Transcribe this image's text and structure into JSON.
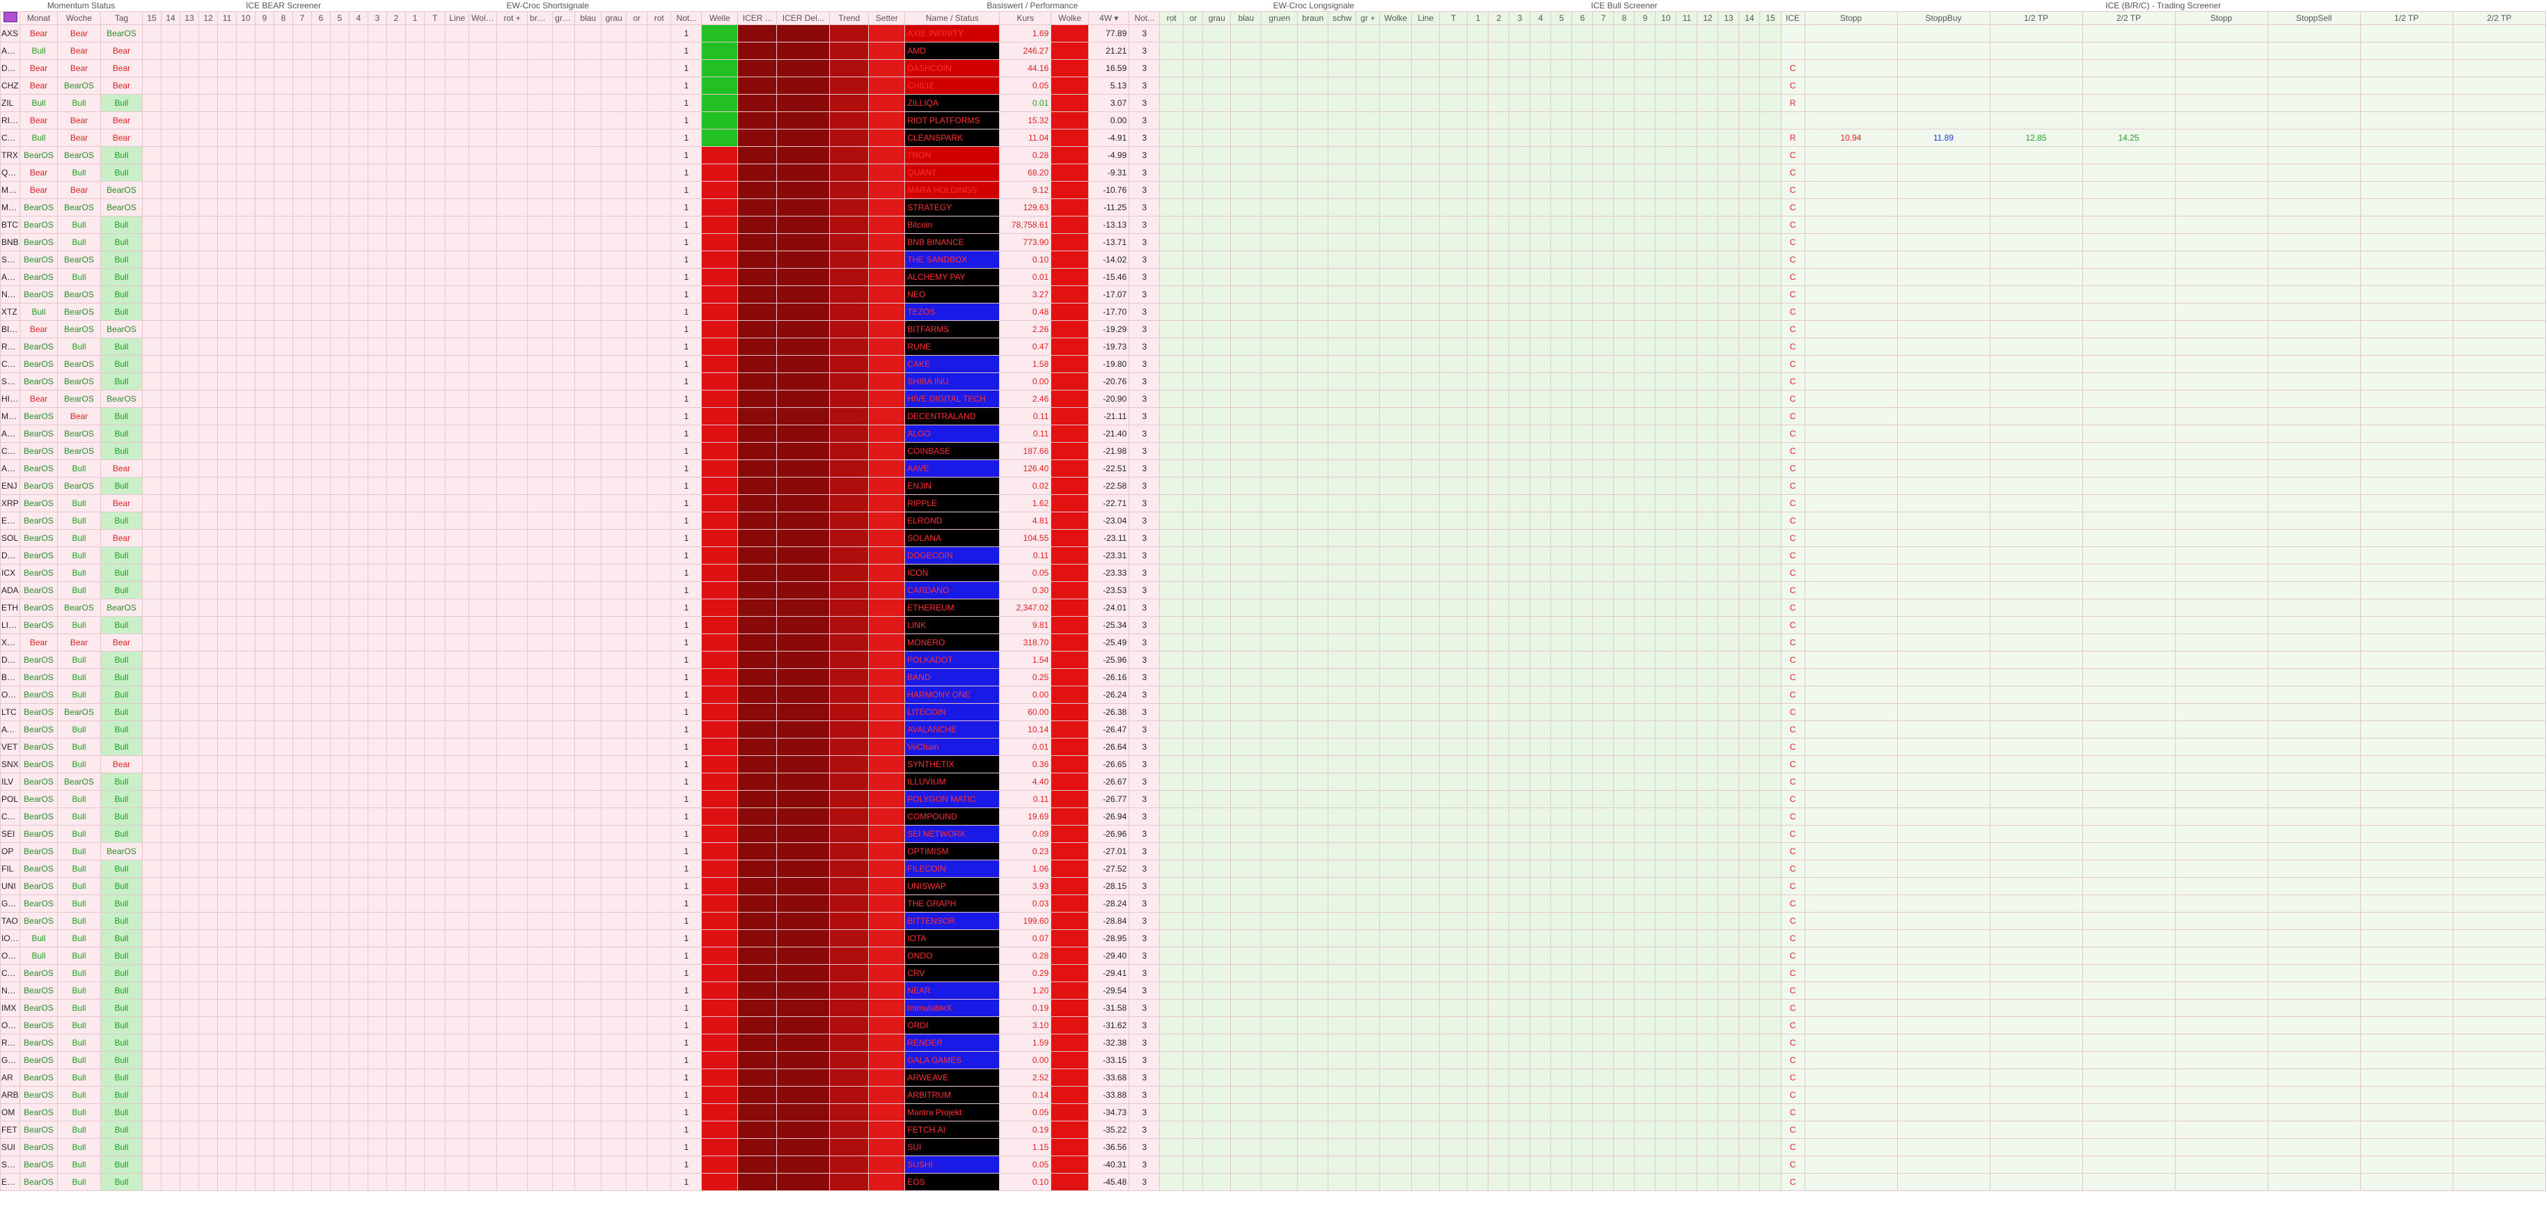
{
  "groups": [
    "Momentum Status",
    "ICE BEAR Screener",
    "EW-Croc Shortsignale",
    "Basiswert / Performance",
    "EW-Croc Longsignale",
    "ICE Bull Screener",
    "ICE (B/R/C) - Trading Screener"
  ],
  "columns": [
    "Monat",
    "Woche",
    "Tag",
    "15",
    "14",
    "13",
    "12",
    "11",
    "10",
    "9",
    "8",
    "7",
    "6",
    "5",
    "4",
    "3",
    "2",
    "1",
    "T",
    "Line",
    "Wolke",
    "rot +",
    "braun",
    "grü...",
    "blau",
    "grau",
    "or",
    "rot",
    "Not...",
    "Welle",
    "ICER ...",
    "ICER Del...",
    "Trend",
    "Setter",
    "Name / Status",
    "Kurs",
    "Wolke",
    "4W ▾",
    "Not...",
    "rot",
    "or",
    "grau",
    "blau",
    "gruen",
    "braun",
    "schw",
    "gr +",
    "Wolke",
    "Line",
    "T",
    "1",
    "2",
    "3",
    "4",
    "5",
    "6",
    "7",
    "8",
    "9",
    "10",
    "11",
    "12",
    "13",
    "14",
    "15",
    "ICE",
    "Stopp",
    "StoppBuy",
    "1/2 TP",
    "2/2 TP",
    "Stopp",
    "StoppSell",
    "1/2 TP",
    "2/2 TP"
  ],
  "rows": [
    {
      "t": "AXS",
      "m": "Bear",
      "w": "Bear",
      "d": "BearOS",
      "s": "1",
      "wl": "green",
      "n": "AXIE INFINITY",
      "k": "1.69",
      "p": "77.89",
      "x": "3",
      "bg": "#d00000"
    },
    {
      "t": "AMD",
      "m": "Bull",
      "w": "Bear",
      "d": "Bear",
      "s": "1",
      "wl": "green",
      "n": "AMD",
      "k": "246.27",
      "p": "21.21",
      "x": "3",
      "bg": "#000000"
    },
    {
      "t": "DASH",
      "m": "Bear",
      "w": "Bear",
      "d": "Bear",
      "s": "1",
      "wl": "green",
      "n": "DASHCOIN",
      "k": "44.16",
      "p": "16.59",
      "x": "3",
      "bg": "#d00000",
      "ice": "C"
    },
    {
      "t": "CHZ",
      "m": "Bear",
      "w": "BearOS",
      "d": "Bear",
      "s": "1",
      "wl": "green",
      "n": "CHILIZ",
      "k": "0.05",
      "p": "5.13",
      "x": "3",
      "bg": "#d00000",
      "ice": "C"
    },
    {
      "t": "ZIL",
      "m": "Bull",
      "w": "Bull",
      "d": "Bull",
      "s": "1",
      "wl": "green",
      "n": "ZILLIQA",
      "k": "0.01",
      "kc": "#22aa22",
      "p": "3.07",
      "x": "3",
      "bg": "#000000",
      "ice": "R"
    },
    {
      "t": "RIOT",
      "m": "Bear",
      "w": "Bear",
      "d": "Bear",
      "s": "1",
      "wl": "green",
      "n": "RIOT PLATFORMS",
      "k": "15.32",
      "p": "0.00",
      "x": "3",
      "bg": "#000000"
    },
    {
      "t": "CLSK",
      "m": "Bull",
      "w": "Bear",
      "d": "Bear",
      "s": "1",
      "wl": "green",
      "n": "CLEANSPARK",
      "k": "11.04",
      "p": "-4.91",
      "x": "3",
      "bg": "#000000",
      "ice": "R",
      "tr": [
        "10.94",
        "11.89",
        "12.85",
        "14.25"
      ]
    },
    {
      "t": "TRX",
      "m": "BearOS",
      "w": "BearOS",
      "d": "Bull",
      "s": "1",
      "wl": "red",
      "n": "TRON",
      "k": "0.28",
      "p": "-4.99",
      "x": "3",
      "bg": "#d00000",
      "ice": "C"
    },
    {
      "t": "QNT",
      "m": "Bear",
      "w": "Bull",
      "d": "Bull",
      "s": "1",
      "wl": "red",
      "n": "QUANT",
      "k": "68.20",
      "p": "-9.31",
      "x": "3",
      "bg": "#d00000",
      "ice": "C"
    },
    {
      "t": "MARA",
      "m": "Bear",
      "w": "Bear",
      "d": "BearOS",
      "s": "1",
      "wl": "red",
      "n": "MARA HOLDINGS",
      "k": "9.12",
      "p": "-10.76",
      "x": "3",
      "bg": "#d00000",
      "ice": "C"
    },
    {
      "t": "MSTR",
      "m": "BearOS",
      "w": "BearOS",
      "d": "BearOS",
      "s": "1",
      "wl": "red",
      "n": "STRATEGY",
      "k": "129.63",
      "p": "-11.25",
      "x": "3",
      "bg": "#000000",
      "ice": "C"
    },
    {
      "t": "BTC",
      "m": "BearOS",
      "w": "Bull",
      "d": "Bull",
      "s": "1",
      "wl": "red",
      "n": "Bitcoin",
      "k": "78,758.61",
      "p": "-13.13",
      "x": "3",
      "bg": "#000000",
      "ice": "C"
    },
    {
      "t": "BNB",
      "m": "BearOS",
      "w": "Bull",
      "d": "Bull",
      "s": "1",
      "wl": "red",
      "n": "BNB BINANCE",
      "k": "773.90",
      "p": "-13.71",
      "x": "3",
      "bg": "#000000",
      "ice": "C"
    },
    {
      "t": "SAND",
      "m": "BearOS",
      "w": "BearOS",
      "d": "Bull",
      "s": "1",
      "wl": "red",
      "n": "THE SANDBOX",
      "k": "0.10",
      "p": "-14.02",
      "x": "3",
      "bg": "#1a1ae6",
      "ice": "C"
    },
    {
      "t": "ACH",
      "m": "BearOS",
      "w": "Bull",
      "d": "Bull",
      "s": "1",
      "wl": "red",
      "n": "ALCHEMY PAY",
      "k": "0.01",
      "p": "-15.46",
      "x": "3",
      "bg": "#000000",
      "ice": "C"
    },
    {
      "t": "NEO",
      "m": "BearOS",
      "w": "BearOS",
      "d": "Bull",
      "s": "1",
      "wl": "red",
      "n": "NEO",
      "k": "3.27",
      "p": "-17.07",
      "x": "3",
      "bg": "#000000",
      "ice": "C"
    },
    {
      "t": "XTZ",
      "m": "Bull",
      "w": "BearOS",
      "d": "Bull",
      "s": "1",
      "wl": "red",
      "n": "TEZOS",
      "k": "0.48",
      "p": "-17.70",
      "x": "3",
      "bg": "#1a1ae6",
      "ice": "C"
    },
    {
      "t": "BITF",
      "m": "Bear",
      "w": "BearOS",
      "d": "BearOS",
      "s": "1",
      "wl": "red",
      "n": "BITFARMS",
      "k": "2.26",
      "p": "-19.29",
      "x": "3",
      "bg": "#000000",
      "ice": "C"
    },
    {
      "t": "RUNE",
      "m": "BearOS",
      "w": "Bull",
      "d": "Bull",
      "s": "1",
      "wl": "red",
      "n": "RUNE",
      "k": "0.47",
      "p": "-19.73",
      "x": "3",
      "bg": "#000000",
      "ice": "C"
    },
    {
      "t": "CAKE",
      "m": "BearOS",
      "w": "BearOS",
      "d": "Bull",
      "s": "1",
      "wl": "red",
      "n": "CAKE",
      "k": "1.58",
      "p": "-19.80",
      "x": "3",
      "bg": "#1a1ae6",
      "ice": "C"
    },
    {
      "t": "SHIB",
      "m": "BearOS",
      "w": "BearOS",
      "d": "Bull",
      "s": "1",
      "wl": "red",
      "n": "SHIBA INU",
      "k": "0.00",
      "p": "-20.76",
      "x": "3",
      "bg": "#1a1ae6",
      "ice": "C"
    },
    {
      "t": "HIVE",
      "m": "Bear",
      "w": "BearOS",
      "d": "BearOS",
      "s": "1",
      "wl": "red",
      "n": "HIVE DIGITAL TECH",
      "k": "2.46",
      "p": "-20.90",
      "x": "3",
      "bg": "#1a1ae6",
      "ice": "C"
    },
    {
      "t": "MANA",
      "m": "BearOS",
      "w": "Bear",
      "d": "Bull",
      "s": "1",
      "wl": "red",
      "n": "DECENTRALAND",
      "k": "0.11",
      "p": "-21.11",
      "x": "3",
      "bg": "#000000",
      "ice": "C"
    },
    {
      "t": "ALGO",
      "m": "BearOS",
      "w": "BearOS",
      "d": "Bull",
      "s": "1",
      "wl": "red",
      "n": "ALGO",
      "k": "0.11",
      "p": "-21.40",
      "x": "3",
      "bg": "#1a1ae6",
      "ice": "C"
    },
    {
      "t": "COIN",
      "m": "BearOS",
      "w": "BearOS",
      "d": "Bull",
      "s": "1",
      "wl": "red",
      "n": "COINBASE",
      "k": "187.66",
      "p": "-21.98",
      "x": "3",
      "bg": "#000000",
      "ice": "C"
    },
    {
      "t": "AAVE",
      "m": "BearOS",
      "w": "Bull",
      "d": "Bear",
      "s": "1",
      "wl": "red",
      "n": "AAVE",
      "k": "126.40",
      "p": "-22.51",
      "x": "3",
      "bg": "#1a1ae6",
      "ice": "C"
    },
    {
      "t": "ENJ",
      "m": "BearOS",
      "w": "BearOS",
      "d": "Bull",
      "s": "1",
      "wl": "red",
      "n": "ENJIN",
      "k": "0.02",
      "p": "-22.58",
      "x": "3",
      "bg": "#000000",
      "ice": "C"
    },
    {
      "t": "XRP",
      "m": "BearOS",
      "w": "Bull",
      "d": "Bear",
      "s": "1",
      "wl": "red",
      "n": "RIPPLE",
      "k": "1.62",
      "p": "-22.71",
      "x": "3",
      "bg": "#000000",
      "ice": "C"
    },
    {
      "t": "EGLD",
      "m": "BearOS",
      "w": "Bull",
      "d": "Bull",
      "s": "1",
      "wl": "red",
      "n": "ELROND",
      "k": "4.81",
      "p": "-23.04",
      "x": "3",
      "bg": "#000000",
      "ice": "C"
    },
    {
      "t": "SOL",
      "m": "BearOS",
      "w": "Bull",
      "d": "Bear",
      "s": "1",
      "wl": "red",
      "n": "SOLANA",
      "k": "104.55",
      "p": "-23.11",
      "x": "3",
      "bg": "#000000",
      "ice": "C"
    },
    {
      "t": "DOGE",
      "m": "BearOS",
      "w": "Bull",
      "d": "Bull",
      "s": "1",
      "wl": "red",
      "n": "DOGECOIN",
      "k": "0.11",
      "p": "-23.31",
      "x": "3",
      "bg": "#1a1ae6",
      "ice": "C"
    },
    {
      "t": "ICX",
      "m": "BearOS",
      "w": "Bull",
      "d": "Bull",
      "s": "1",
      "wl": "red",
      "n": "ICON",
      "k": "0.05",
      "p": "-23.33",
      "x": "3",
      "bg": "#000000",
      "ice": "C"
    },
    {
      "t": "ADA",
      "m": "BearOS",
      "w": "Bull",
      "d": "Bull",
      "s": "1",
      "wl": "red",
      "n": "CARDANO",
      "k": "0.30",
      "p": "-23.53",
      "x": "3",
      "bg": "#1a1ae6",
      "ice": "C"
    },
    {
      "t": "ETH",
      "m": "BearOS",
      "w": "BearOS",
      "d": "BearOS",
      "s": "1",
      "wl": "red",
      "n": "ETHEREUM",
      "k": "2,347.02",
      "p": "-24.01",
      "x": "3",
      "bg": "#000000",
      "ice": "C"
    },
    {
      "t": "LINK",
      "m": "BearOS",
      "w": "Bull",
      "d": "Bull",
      "s": "1",
      "wl": "red",
      "n": "LINK",
      "k": "9.81",
      "p": "-25.34",
      "x": "3",
      "bg": "#000000",
      "ice": "C"
    },
    {
      "t": "XMR",
      "m": "Bear",
      "w": "Bear",
      "d": "Bear",
      "s": "1",
      "wl": "red",
      "n": "MONERO",
      "k": "318.70",
      "p": "-25.49",
      "x": "3",
      "bg": "#000000",
      "ice": "C"
    },
    {
      "t": "DOT",
      "m": "BearOS",
      "w": "Bull",
      "d": "Bull",
      "s": "1",
      "wl": "red",
      "n": "POLKADOT",
      "k": "1.54",
      "p": "-25.96",
      "x": "3",
      "bg": "#1a1ae6",
      "ice": "C"
    },
    {
      "t": "BAND",
      "m": "BearOS",
      "w": "Bull",
      "d": "Bull",
      "s": "1",
      "wl": "red",
      "n": "BAND",
      "k": "0.25",
      "p": "-26.16",
      "x": "3",
      "bg": "#1a1ae6",
      "ice": "C"
    },
    {
      "t": "ONE",
      "m": "BearOS",
      "w": "Bull",
      "d": "Bull",
      "s": "1",
      "wl": "red",
      "n": "HARMONY ONE",
      "k": "0.00",
      "p": "-26.24",
      "x": "3",
      "bg": "#1a1ae6",
      "ice": "C"
    },
    {
      "t": "LTC",
      "m": "BearOS",
      "w": "BearOS",
      "d": "Bull",
      "s": "1",
      "wl": "red",
      "n": "LITECOIN",
      "k": "60.00",
      "p": "-26.38",
      "x": "3",
      "bg": "#1a1ae6",
      "ice": "C"
    },
    {
      "t": "AVAX",
      "m": "BearOS",
      "w": "Bull",
      "d": "Bull",
      "s": "1",
      "wl": "red",
      "n": "AVALANCHE",
      "k": "10.14",
      "p": "-26.47",
      "x": "3",
      "bg": "#1a1ae6",
      "ice": "C"
    },
    {
      "t": "VET",
      "m": "BearOS",
      "w": "Bull",
      "d": "Bull",
      "s": "1",
      "wl": "red",
      "n": "VeChain",
      "k": "0.01",
      "p": "-26.64",
      "x": "3",
      "bg": "#1a1ae6",
      "ice": "C"
    },
    {
      "t": "SNX",
      "m": "BearOS",
      "w": "Bull",
      "d": "Bear",
      "s": "1",
      "wl": "red",
      "n": "SYNTHETIX",
      "k": "0.36",
      "p": "-26.65",
      "x": "3",
      "bg": "#000000",
      "ice": "C"
    },
    {
      "t": "ILV",
      "m": "BearOS",
      "w": "BearOS",
      "d": "Bull",
      "s": "1",
      "wl": "red",
      "n": "ILLUVIUM",
      "k": "4.40",
      "p": "-26.67",
      "x": "3",
      "bg": "#000000",
      "ice": "C"
    },
    {
      "t": "POL",
      "m": "BearOS",
      "w": "Bull",
      "d": "Bull",
      "s": "1",
      "wl": "red",
      "n": "POLYGON MATIC",
      "k": "0.11",
      "p": "-26.77",
      "x": "3",
      "bg": "#1a1ae6",
      "ice": "C"
    },
    {
      "t": "COMP",
      "m": "BearOS",
      "w": "Bull",
      "d": "Bull",
      "s": "1",
      "wl": "red",
      "n": "COMPOUND",
      "k": "19.69",
      "p": "-26.94",
      "x": "3",
      "bg": "#000000",
      "ice": "C"
    },
    {
      "t": "SEI",
      "m": "BearOS",
      "w": "Bull",
      "d": "Bull",
      "s": "1",
      "wl": "red",
      "n": "SEI NETWORK",
      "k": "0.09",
      "p": "-26.96",
      "x": "3",
      "bg": "#1a1ae6",
      "ice": "C"
    },
    {
      "t": "OP",
      "m": "BearOS",
      "w": "Bull",
      "d": "BearOS",
      "s": "1",
      "wl": "red",
      "n": "OPTIMISM",
      "k": "0.23",
      "p": "-27.01",
      "x": "3",
      "bg": "#000000",
      "ice": "C"
    },
    {
      "t": "FIL",
      "m": "BearOS",
      "w": "Bull",
      "d": "Bull",
      "s": "1",
      "wl": "red",
      "n": "FILECOIN",
      "k": "1.06",
      "p": "-27.52",
      "x": "3",
      "bg": "#1a1ae6",
      "ice": "C"
    },
    {
      "t": "UNI",
      "m": "BearOS",
      "w": "Bull",
      "d": "Bull",
      "s": "1",
      "wl": "red",
      "n": "UNISWAP",
      "k": "3.93",
      "p": "-28.15",
      "x": "3",
      "bg": "#000000",
      "ice": "C"
    },
    {
      "t": "GRT",
      "m": "BearOS",
      "w": "Bull",
      "d": "Bull",
      "s": "1",
      "wl": "red",
      "n": "THE GRAPH",
      "k": "0.03",
      "p": "-28.24",
      "x": "3",
      "bg": "#000000",
      "ice": "C"
    },
    {
      "t": "TAO",
      "m": "BearOS",
      "w": "Bull",
      "d": "Bull",
      "s": "1",
      "wl": "red",
      "n": "BITTENSOR",
      "k": "199.60",
      "p": "-28.84",
      "x": "3",
      "bg": "#1a1ae6",
      "ice": "C"
    },
    {
      "t": "IOTA",
      "m": "Bull",
      "w": "Bull",
      "d": "Bull",
      "s": "1",
      "wl": "red",
      "n": "IOTA",
      "k": "0.07",
      "p": "-28.95",
      "x": "3",
      "bg": "#000000",
      "ice": "C"
    },
    {
      "t": "ONDO",
      "m": "Bull",
      "w": "Bull",
      "d": "Bull",
      "s": "1",
      "wl": "red",
      "n": "ONDO",
      "k": "0.28",
      "p": "-29.40",
      "x": "3",
      "bg": "#000000",
      "ice": "C"
    },
    {
      "t": "CRV",
      "m": "BearOS",
      "w": "Bull",
      "d": "Bull",
      "s": "1",
      "wl": "red",
      "n": "CRV",
      "k": "0.29",
      "p": "-29.41",
      "x": "3",
      "bg": "#000000",
      "ice": "C"
    },
    {
      "t": "NEAR",
      "m": "BearOS",
      "w": "Bull",
      "d": "Bull",
      "s": "1",
      "wl": "red",
      "n": "NEAR",
      "k": "1.20",
      "p": "-29.54",
      "x": "3",
      "bg": "#1a1ae6",
      "ice": "C"
    },
    {
      "t": "IMX",
      "m": "BearOS",
      "w": "Bull",
      "d": "Bull",
      "s": "1",
      "wl": "red",
      "n": "ImmutableX",
      "k": "0.19",
      "p": "-31.58",
      "x": "3",
      "bg": "#1a1ae6",
      "ice": "C"
    },
    {
      "t": "ORDI",
      "m": "BearOS",
      "w": "Bull",
      "d": "Bull",
      "s": "1",
      "wl": "red",
      "n": "ORDI",
      "k": "3.10",
      "p": "-31.62",
      "x": "3",
      "bg": "#000000",
      "ice": "C"
    },
    {
      "t": "RENDER",
      "m": "BearOS",
      "w": "Bull",
      "d": "Bull",
      "s": "1",
      "wl": "red",
      "n": "RENDER",
      "k": "1.59",
      "p": "-32.38",
      "x": "3",
      "bg": "#1a1ae6",
      "ice": "C"
    },
    {
      "t": "GALA",
      "m": "BearOS",
      "w": "Bull",
      "d": "Bull",
      "s": "1",
      "wl": "red",
      "n": "GALA GAMES",
      "k": "0.00",
      "p": "-33.15",
      "x": "3",
      "bg": "#1a1ae6",
      "ice": "C"
    },
    {
      "t": "AR",
      "m": "BearOS",
      "w": "Bull",
      "d": "Bull",
      "s": "1",
      "wl": "red",
      "n": "ARWEAVE",
      "k": "2.52",
      "p": "-33.68",
      "x": "3",
      "bg": "#000000",
      "ice": "C"
    },
    {
      "t": "ARB",
      "m": "BearOS",
      "w": "Bull",
      "d": "Bull",
      "s": "1",
      "wl": "red",
      "n": "ARBITRUM",
      "k": "0.14",
      "p": "-33.88",
      "x": "3",
      "bg": "#000000",
      "ice": "C"
    },
    {
      "t": "OM",
      "m": "BearOS",
      "w": "Bull",
      "d": "Bull",
      "s": "1",
      "wl": "red",
      "n": "Mantra Projekt",
      "k": "0.05",
      "p": "-34.73",
      "x": "3",
      "bg": "#000000",
      "ice": "C"
    },
    {
      "t": "FET",
      "m": "BearOS",
      "w": "Bull",
      "d": "Bull",
      "s": "1",
      "wl": "red",
      "n": "FETCH.AI",
      "k": "0.19",
      "p": "-35.22",
      "x": "3",
      "bg": "#000000",
      "ice": "C"
    },
    {
      "t": "SUI",
      "m": "BearOS",
      "w": "Bull",
      "d": "Bull",
      "s": "1",
      "wl": "red",
      "n": "SUI",
      "k": "1.15",
      "p": "-36.56",
      "x": "3",
      "bg": "#000000",
      "ice": "C"
    },
    {
      "t": "SUSHI",
      "m": "BearOS",
      "w": "Bull",
      "d": "Bull",
      "s": "1",
      "wl": "red",
      "n": "SUSHI",
      "k": "0.05",
      "p": "-40.31",
      "x": "3",
      "bg": "#1a1ae6",
      "ice": "C"
    },
    {
      "t": "EOS",
      "m": "BearOS",
      "w": "Bull",
      "d": "Bull",
      "s": "1",
      "wl": "red",
      "n": "EOS",
      "k": "0.10",
      "p": "-45.48",
      "x": "3",
      "bg": "#000000",
      "ice": "C"
    }
  ]
}
